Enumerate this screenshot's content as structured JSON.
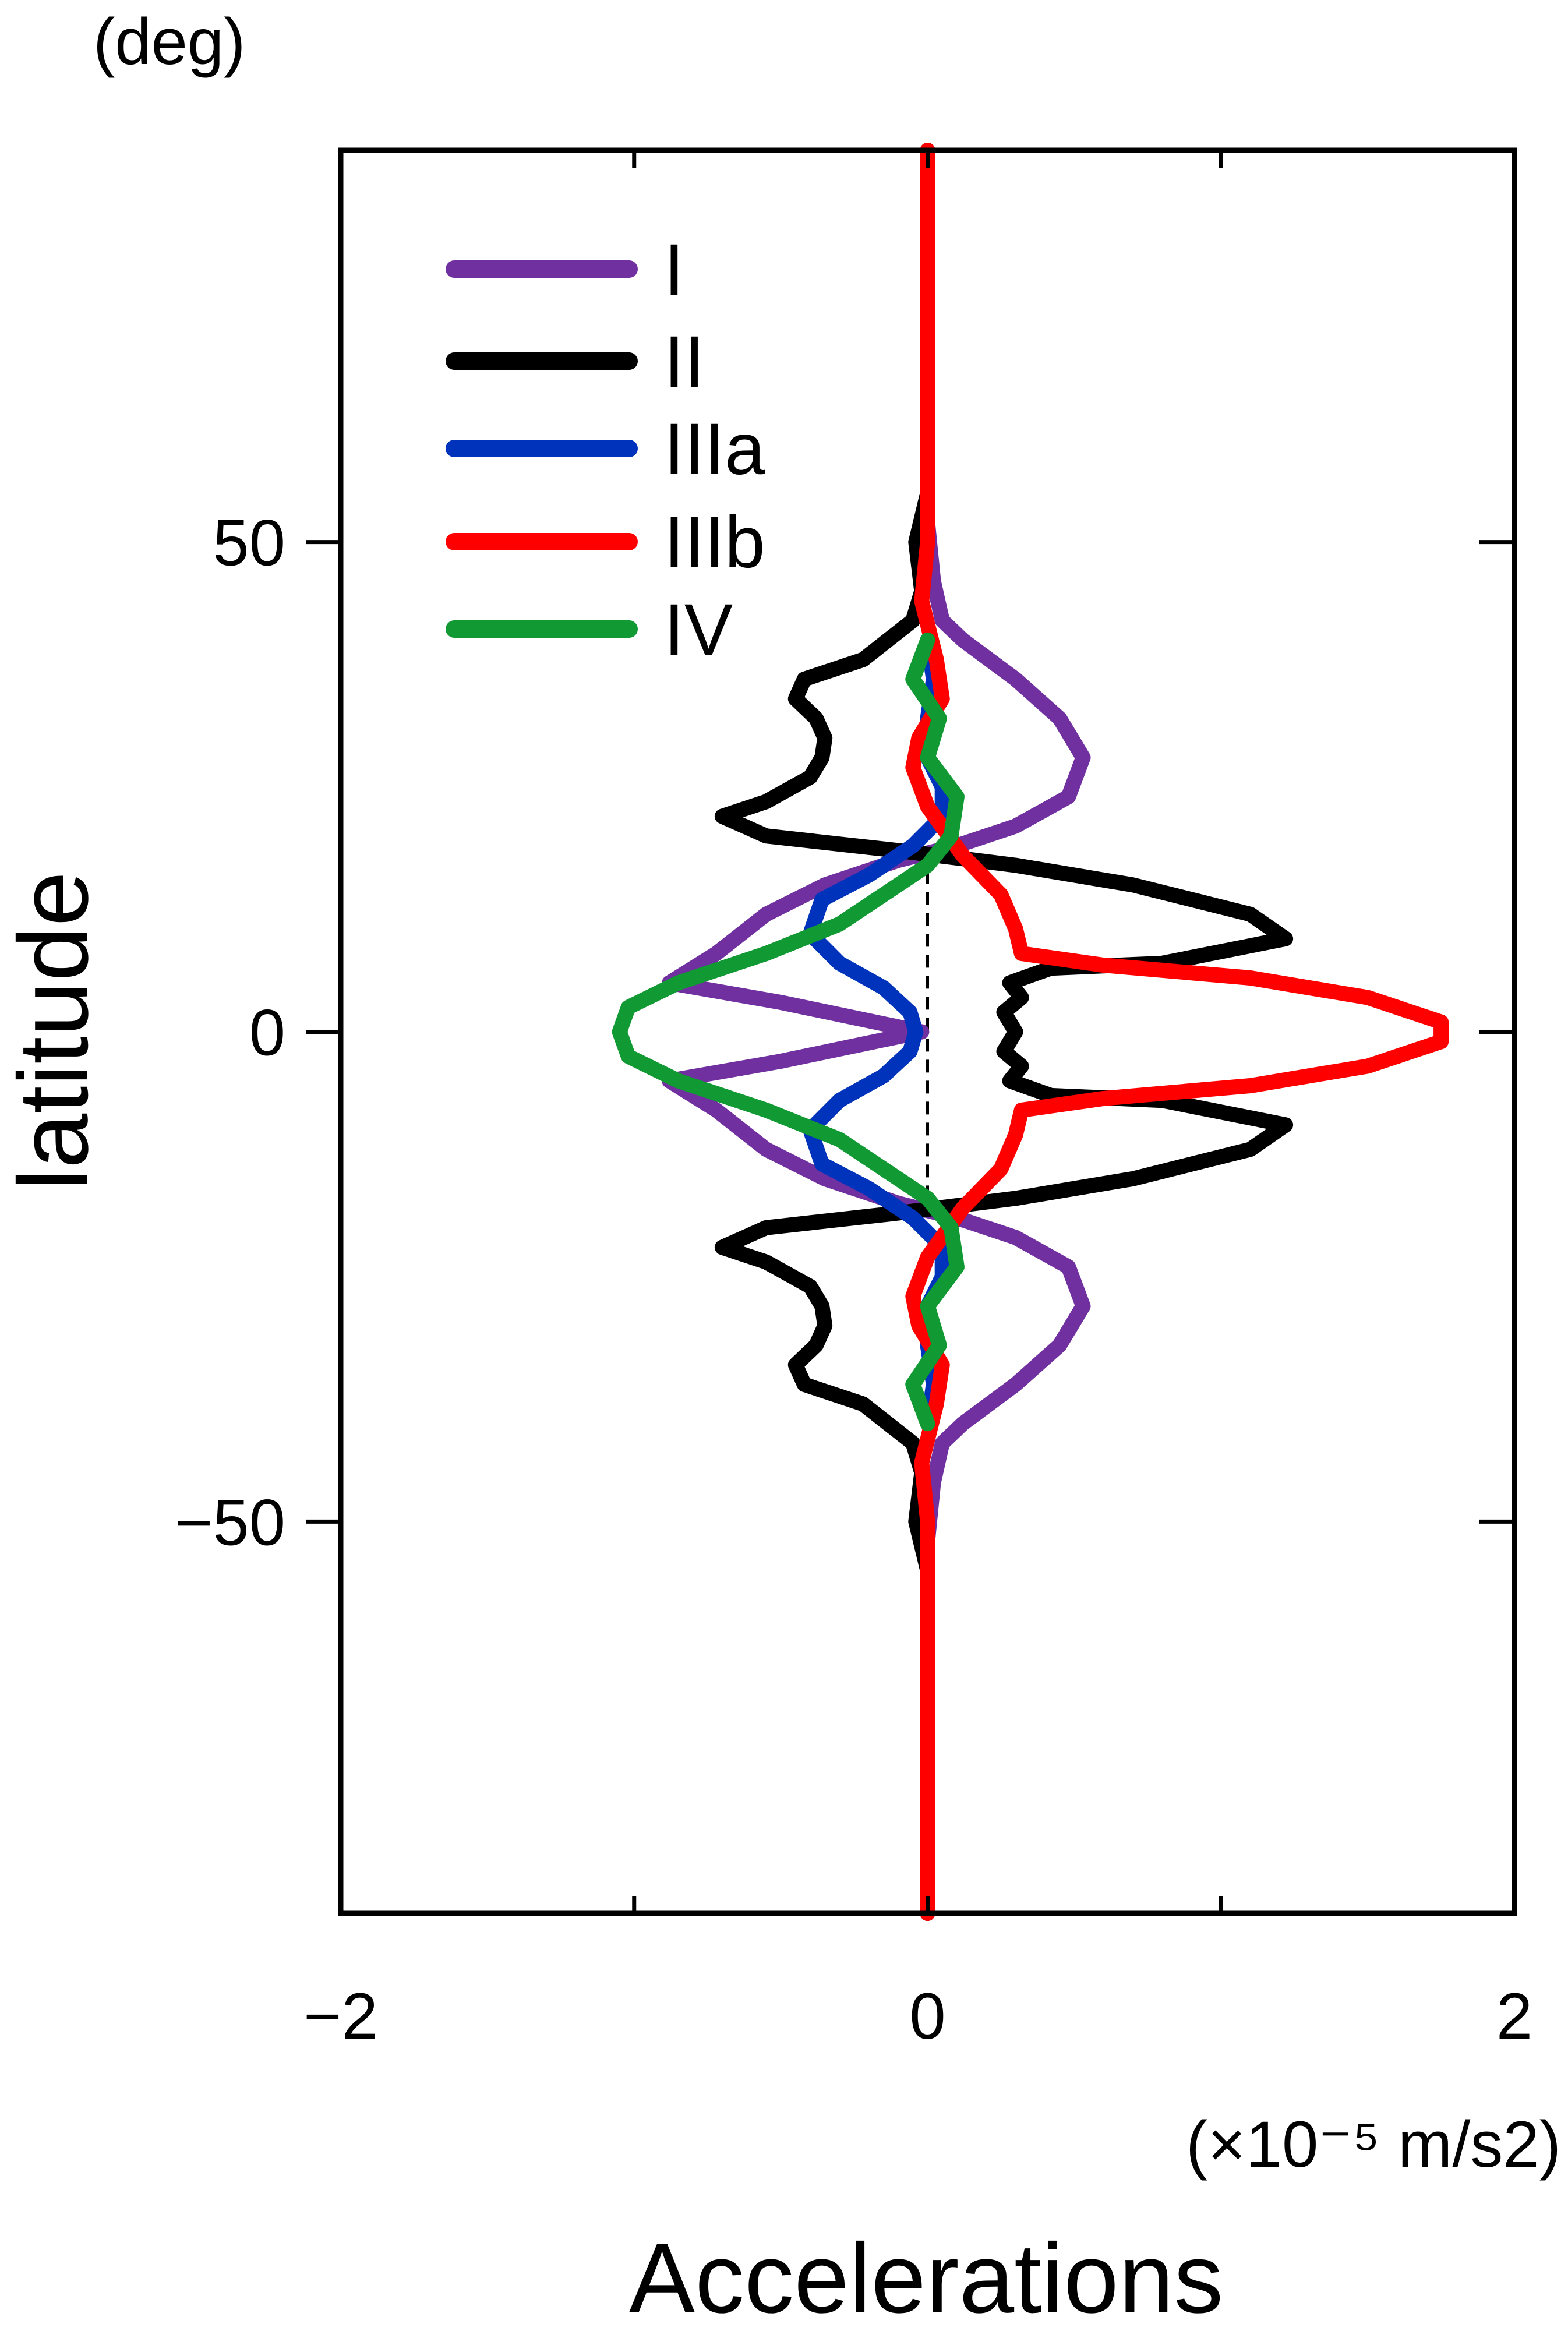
{
  "chart_data": {
    "type": "line",
    "xlabel": "Accelerations",
    "ylabel": "latitude",
    "x_unit": "(×10⁻⁵ m/s2)",
    "y_unit": "(deg)",
    "xlim": [
      -2,
      2
    ],
    "ylim": [
      -90,
      90
    ],
    "xticks": [
      -2,
      0,
      2
    ],
    "yticks": [
      -50,
      0,
      50
    ],
    "legend_position": "top-left",
    "grid": false,
    "zero_line": {
      "x": 0,
      "style": "dashed"
    },
    "series": [
      {
        "name": "I",
        "color": "#7030A0",
        "points": [
          [
            0.0,
            -90
          ],
          [
            0.0,
            -60
          ],
          [
            0.0,
            -52
          ],
          [
            0.02,
            -46
          ],
          [
            0.05,
            -42
          ],
          [
            0.12,
            -40
          ],
          [
            0.3,
            -36
          ],
          [
            0.45,
            -32
          ],
          [
            0.53,
            -28
          ],
          [
            0.48,
            -24
          ],
          [
            0.3,
            -21
          ],
          [
            0.1,
            -19
          ],
          [
            -0.1,
            -17.5
          ],
          [
            -0.35,
            -15
          ],
          [
            -0.55,
            -12
          ],
          [
            -0.72,
            -8
          ],
          [
            -0.88,
            -5
          ],
          [
            -0.5,
            -3
          ],
          [
            -0.02,
            0
          ],
          [
            -0.5,
            3
          ],
          [
            -0.88,
            5
          ],
          [
            -0.72,
            8
          ],
          [
            -0.55,
            12
          ],
          [
            -0.35,
            15
          ],
          [
            -0.1,
            17.5
          ],
          [
            0.1,
            19
          ],
          [
            0.3,
            21
          ],
          [
            0.48,
            24
          ],
          [
            0.53,
            28
          ],
          [
            0.45,
            32
          ],
          [
            0.3,
            36
          ],
          [
            0.12,
            40
          ],
          [
            0.05,
            42
          ],
          [
            0.02,
            46
          ],
          [
            0.0,
            52
          ],
          [
            0.0,
            60
          ],
          [
            0.0,
            90
          ]
        ]
      },
      {
        "name": "II",
        "color": "#000000",
        "points": [
          [
            0.0,
            -90
          ],
          [
            0.0,
            -55
          ],
          [
            -0.04,
            -50
          ],
          [
            -0.02,
            -45
          ],
          [
            -0.05,
            -42
          ],
          [
            -0.22,
            -38
          ],
          [
            -0.42,
            -36
          ],
          [
            -0.45,
            -34
          ],
          [
            -0.38,
            -32
          ],
          [
            -0.35,
            -30
          ],
          [
            -0.36,
            -28
          ],
          [
            -0.4,
            -26
          ],
          [
            -0.55,
            -23.5
          ],
          [
            -0.7,
            -22
          ],
          [
            -0.55,
            -20
          ],
          [
            -0.1,
            -18.5
          ],
          [
            0.3,
            -17
          ],
          [
            0.7,
            -15
          ],
          [
            1.1,
            -12
          ],
          [
            1.22,
            -9.5
          ],
          [
            0.8,
            -7
          ],
          [
            0.42,
            -6.5
          ],
          [
            0.28,
            -5
          ],
          [
            0.32,
            -3.5
          ],
          [
            0.26,
            -2
          ],
          [
            0.3,
            0
          ],
          [
            0.26,
            2
          ],
          [
            0.32,
            3.5
          ],
          [
            0.28,
            5
          ],
          [
            0.42,
            6.5
          ],
          [
            0.8,
            7
          ],
          [
            1.22,
            9.5
          ],
          [
            1.1,
            12
          ],
          [
            0.7,
            15
          ],
          [
            0.3,
            17
          ],
          [
            -0.1,
            18.5
          ],
          [
            -0.55,
            20
          ],
          [
            -0.7,
            22
          ],
          [
            -0.55,
            23.5
          ],
          [
            -0.4,
            26
          ],
          [
            -0.36,
            28
          ],
          [
            -0.35,
            30
          ],
          [
            -0.38,
            32
          ],
          [
            -0.45,
            34
          ],
          [
            -0.42,
            36
          ],
          [
            -0.22,
            38
          ],
          [
            -0.05,
            42
          ],
          [
            -0.02,
            45
          ],
          [
            -0.04,
            50
          ],
          [
            0.0,
            55
          ],
          [
            0.0,
            90
          ]
        ]
      },
      {
        "name": "IIIa",
        "color": "#0033BB",
        "points": [
          [
            0.0,
            -40
          ],
          [
            0.02,
            -36
          ],
          [
            0.0,
            -32
          ],
          [
            0.0,
            -28
          ],
          [
            0.05,
            -25
          ],
          [
            0.05,
            -22
          ],
          [
            -0.05,
            -19
          ],
          [
            -0.2,
            -16
          ],
          [
            -0.36,
            -13.5
          ],
          [
            -0.4,
            -10
          ],
          [
            -0.3,
            -7
          ],
          [
            -0.15,
            -4.5
          ],
          [
            -0.06,
            -2
          ],
          [
            -0.04,
            0
          ],
          [
            -0.06,
            2
          ],
          [
            -0.15,
            4.5
          ],
          [
            -0.3,
            7
          ],
          [
            -0.4,
            10
          ],
          [
            -0.36,
            13.5
          ],
          [
            -0.2,
            16
          ],
          [
            -0.05,
            19
          ],
          [
            0.05,
            22
          ],
          [
            0.05,
            25
          ],
          [
            0.0,
            28
          ],
          [
            0.0,
            32
          ],
          [
            0.02,
            36
          ],
          [
            0.0,
            40
          ]
        ]
      },
      {
        "name": "IIIb",
        "color": "#FF0000",
        "points": [
          [
            0.0,
            -90
          ],
          [
            0.0,
            -60
          ],
          [
            0.0,
            -50
          ],
          [
            -0.02,
            -44
          ],
          [
            0.03,
            -38
          ],
          [
            0.05,
            -34
          ],
          [
            -0.03,
            -30
          ],
          [
            -0.05,
            -27
          ],
          [
            0.0,
            -23
          ],
          [
            0.12,
            -18
          ],
          [
            0.25,
            -14
          ],
          [
            0.3,
            -10.5
          ],
          [
            0.32,
            -8
          ],
          [
            0.6,
            -6.8
          ],
          [
            1.1,
            -5.5
          ],
          [
            1.5,
            -3.5
          ],
          [
            1.75,
            -1
          ],
          [
            1.75,
            1
          ],
          [
            1.5,
            3.5
          ],
          [
            1.1,
            5.5
          ],
          [
            0.6,
            6.8
          ],
          [
            0.32,
            8
          ],
          [
            0.3,
            10.5
          ],
          [
            0.25,
            14
          ],
          [
            0.12,
            18
          ],
          [
            0.0,
            23
          ],
          [
            -0.05,
            27
          ],
          [
            -0.03,
            30
          ],
          [
            0.05,
            34
          ],
          [
            0.03,
            38
          ],
          [
            -0.02,
            44
          ],
          [
            0.0,
            50
          ],
          [
            0.0,
            60
          ],
          [
            0.0,
            90
          ]
        ]
      },
      {
        "name": "IV",
        "color": "#119933",
        "points": [
          [
            0.0,
            -40
          ],
          [
            -0.05,
            -36
          ],
          [
            0.04,
            -32
          ],
          [
            0.0,
            -28
          ],
          [
            0.1,
            -24
          ],
          [
            0.08,
            -20
          ],
          [
            0.0,
            -17
          ],
          [
            -0.15,
            -14
          ],
          [
            -0.3,
            -11
          ],
          [
            -0.55,
            -8
          ],
          [
            -0.85,
            -5
          ],
          [
            -1.02,
            -2.5
          ],
          [
            -1.05,
            0
          ],
          [
            -1.02,
            2.5
          ],
          [
            -0.85,
            5
          ],
          [
            -0.55,
            8
          ],
          [
            -0.3,
            11
          ],
          [
            -0.15,
            14
          ],
          [
            0.0,
            17
          ],
          [
            0.08,
            20
          ],
          [
            0.1,
            24
          ],
          [
            0.0,
            28
          ],
          [
            0.04,
            32
          ],
          [
            -0.05,
            36
          ],
          [
            0.0,
            40
          ]
        ]
      }
    ]
  }
}
